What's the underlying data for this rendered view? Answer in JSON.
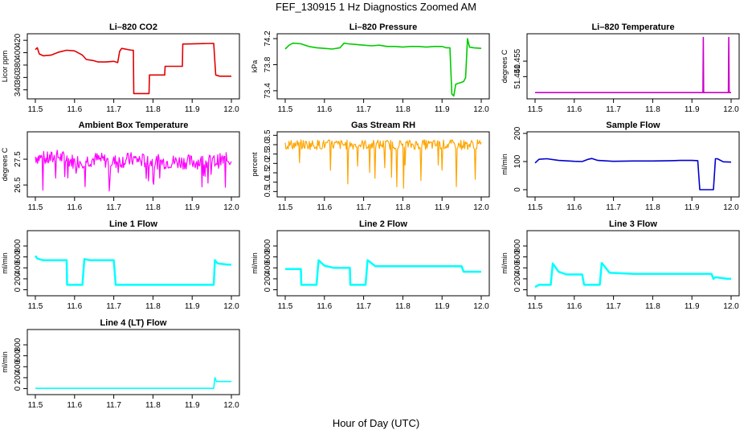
{
  "figure": {
    "title": "FEF_130915  1 Hz Diagnostics Zoomed AM",
    "xlabel": "Hour of Day (UTC)"
  },
  "chart_data": [
    {
      "type": "line",
      "title": "Li–820 CO2",
      "ylabel": "Licor ppm",
      "color": "#e00000",
      "xlim": [
        11.5,
        12.0
      ],
      "ylim": [
        328,
        428
      ],
      "xticks": [
        "11.5",
        "11.6",
        "11.7",
        "11.8",
        "11.9",
        "12.0"
      ],
      "yticks": [
        "340",
        "360",
        "380",
        "400",
        "420"
      ],
      "series": [
        {
          "x": [
            11.5,
            11.505,
            11.51,
            11.52,
            11.54,
            11.56,
            11.58,
            11.6,
            11.62,
            11.63,
            11.65,
            11.66,
            11.68,
            11.7,
            11.71,
            11.715,
            11.72,
            11.745,
            11.75,
            11.751,
            11.79,
            11.791,
            11.83,
            11.831,
            11.875,
            11.876,
            11.955,
            11.96,
            11.97,
            12.0
          ],
          "y": [
            405,
            408,
            398,
            395,
            396,
            401,
            404,
            403,
            396,
            389,
            387,
            385,
            385,
            386,
            384,
            402,
            407,
            404,
            404,
            334,
            334,
            364,
            364,
            378,
            378,
            414,
            415,
            364,
            362,
            362
          ]
        }
      ]
    },
    {
      "type": "line",
      "title": "Li–820 Pressure",
      "ylabel": "kPa",
      "color": "#00cc00",
      "xlim": [
        11.5,
        12.0
      ],
      "ylim": [
        73.3,
        74.25
      ],
      "xticks": [
        "11.5",
        "11.6",
        "11.7",
        "11.8",
        "11.9",
        "12.0"
      ],
      "yticks": [
        "73.4",
        "73.8",
        "74.2"
      ],
      "series": [
        {
          "x": [
            11.5,
            11.51,
            11.52,
            11.54,
            11.56,
            11.58,
            11.6,
            11.62,
            11.64,
            11.65,
            11.66,
            11.68,
            11.7,
            11.72,
            11.74,
            11.76,
            11.78,
            11.8,
            11.82,
            11.84,
            11.86,
            11.88,
            11.9,
            11.91,
            11.92,
            11.925,
            11.93,
            11.935,
            11.955,
            11.96,
            11.965,
            11.97,
            11.98,
            12.0
          ],
          "y": [
            74.04,
            74.1,
            74.13,
            74.12,
            74.08,
            74.06,
            74.05,
            74.04,
            74.06,
            74.13,
            74.12,
            74.11,
            74.1,
            74.09,
            74.1,
            74.08,
            74.08,
            74.07,
            74.08,
            74.08,
            74.07,
            74.08,
            74.08,
            74.06,
            74.06,
            73.35,
            73.32,
            73.5,
            73.54,
            73.6,
            74.2,
            74.07,
            74.06,
            74.05
          ]
        }
      ]
    },
    {
      "type": "line",
      "title": "Li–820 Temperature",
      "ylabel": "degrees C",
      "color": "#cc00cc",
      "xlim": [
        11.5,
        12.0
      ],
      "ylim": [
        51.42,
        51.48
      ],
      "xticks": [
        "11.5",
        "11.6",
        "11.7",
        "11.8",
        "11.9",
        "12.0"
      ],
      "yticks": [
        "51.440",
        "51.455"
      ],
      "series": [
        {
          "x": [
            11.5,
            11.928,
            11.929,
            11.93,
            11.993,
            11.994,
            11.995,
            12.0
          ],
          "y": [
            51.4245,
            51.4245,
            51.478,
            51.4245,
            51.4245,
            51.478,
            51.4245,
            51.4245
          ]
        }
      ]
    },
    {
      "type": "line",
      "title": "Ambient Box Temperature",
      "ylabel": "degrees C",
      "color": "#ff00ff",
      "xlim": [
        11.5,
        12.0
      ],
      "ylim": [
        26.1,
        28.5
      ],
      "xticks": [
        "11.5",
        "11.6",
        "11.7",
        "11.8",
        "11.9",
        "12.0"
      ],
      "yticks": [
        "26.5",
        "27.5"
      ],
      "series": [
        {
          "x": [
            11.5,
            11.53,
            11.56,
            11.6,
            11.65,
            11.7,
            11.75,
            11.8,
            11.85,
            11.9,
            11.95,
            12.0
          ],
          "y": [
            27.6,
            27.5,
            27.6,
            27.4,
            27.5,
            27.4,
            27.5,
            27.4,
            27.4,
            27.4,
            27.4,
            27.5
          ]
        }
      ]
    },
    {
      "type": "line",
      "title": "Gas Stream RH",
      "ylabel": "percent",
      "color": "#ffa500",
      "xlim": [
        11.5,
        12.0
      ],
      "ylim": [
        0.3,
        3.6
      ],
      "xticks": [
        "11.5",
        "11.6",
        "11.7",
        "11.8",
        "11.9",
        "12.0"
      ],
      "yticks": [
        "0.5",
        "1.0",
        "1.5",
        "2.0",
        "2.5",
        "3.0",
        "3.5"
      ],
      "series": [
        {
          "x": [
            11.5,
            11.55,
            11.6,
            11.65,
            11.7,
            11.75,
            11.8,
            11.85,
            11.9,
            11.95,
            12.0
          ],
          "y": [
            3.0,
            3.0,
            3.0,
            3.0,
            3.0,
            3.0,
            3.0,
            3.0,
            3.0,
            3.0,
            3.0
          ]
        }
      ]
    },
    {
      "type": "line",
      "title": "Sample Flow",
      "ylabel": "ml/min",
      "color": "#0000cc",
      "xlim": [
        11.5,
        12.0
      ],
      "ylim": [
        -20,
        200
      ],
      "xticks": [
        "11.5",
        "11.6",
        "11.7",
        "11.8",
        "11.9",
        "12.0"
      ],
      "yticks": [
        "0",
        "100",
        "200"
      ],
      "series": [
        {
          "x": [
            11.5,
            11.51,
            11.53,
            11.56,
            11.6,
            11.62,
            11.635,
            11.645,
            11.66,
            11.7,
            11.75,
            11.8,
            11.85,
            11.87,
            11.9,
            11.915,
            11.92,
            11.955,
            11.96,
            11.965,
            11.98,
            12.0
          ],
          "y": [
            95,
            108,
            110,
            104,
            101,
            100,
            108,
            111,
            104,
            101,
            102,
            102,
            103,
            104,
            104,
            103,
            0,
            0,
            110,
            110,
            99,
            98
          ]
        }
      ]
    },
    {
      "type": "line",
      "title": "Line 1 Flow",
      "ylabel": "ml/min",
      "color": "#00ffff",
      "xlim": [
        11.5,
        12.0
      ],
      "ylim": [
        -80,
        1050
      ],
      "xticks": [
        "11.5",
        "11.6",
        "11.7",
        "11.8",
        "11.9",
        "12.0"
      ],
      "yticks": [
        "0",
        "200",
        "400",
        "600",
        "800"
      ],
      "series": [
        {
          "x": [
            11.5,
            11.505,
            11.52,
            11.58,
            11.581,
            11.62,
            11.625,
            11.64,
            11.7,
            11.705,
            11.955,
            11.958,
            11.965,
            11.99,
            12.0
          ],
          "y": [
            620,
            570,
            540,
            540,
            90,
            90,
            560,
            540,
            540,
            90,
            90,
            540,
            480,
            460,
            460
          ]
        }
      ]
    },
    {
      "type": "line",
      "title": "Line 2 Flow",
      "ylabel": "ml/min",
      "color": "#00ffff",
      "xlim": [
        11.5,
        12.0
      ],
      "ylim": [
        -80,
        1050
      ],
      "xticks": [
        "11.5",
        "11.6",
        "11.7",
        "11.8",
        "11.9",
        "12.0"
      ],
      "yticks": [
        "0",
        "200",
        "400",
        "600",
        "800"
      ],
      "series": [
        {
          "x": [
            11.5,
            11.54,
            11.541,
            11.58,
            11.585,
            11.6,
            11.625,
            11.665,
            11.666,
            11.705,
            11.71,
            11.73,
            11.8,
            11.95,
            11.955,
            11.96,
            12.0
          ],
          "y": [
            380,
            380,
            90,
            90,
            540,
            440,
            400,
            400,
            90,
            90,
            540,
            430,
            430,
            430,
            330,
            330,
            330
          ]
        }
      ]
    },
    {
      "type": "line",
      "title": "Line 3 Flow",
      "ylabel": "ml/min",
      "color": "#00ffff",
      "xlim": [
        11.5,
        12.0
      ],
      "ylim": [
        -80,
        1050
      ],
      "xticks": [
        "11.5",
        "11.6",
        "11.7",
        "11.8",
        "11.9",
        "12.0"
      ],
      "yticks": [
        "0",
        "200",
        "400",
        "600",
        "800"
      ],
      "series": [
        {
          "x": [
            11.5,
            11.51,
            11.54,
            11.545,
            11.56,
            11.58,
            11.62,
            11.625,
            11.665,
            11.67,
            11.69,
            11.75,
            11.95,
            11.955,
            11.96,
            11.99,
            12.0
          ],
          "y": [
            50,
            90,
            90,
            480,
            330,
            280,
            280,
            90,
            90,
            490,
            310,
            290,
            290,
            200,
            230,
            200,
            200
          ]
        }
      ]
    },
    {
      "type": "line",
      "title": "Line 4 (LT) Flow",
      "ylabel": "ml/min",
      "color": "#00ffff",
      "xlim": [
        11.5,
        12.0
      ],
      "ylim": [
        -80,
        1050
      ],
      "xticks": [
        "11.5",
        "11.6",
        "11.7",
        "11.8",
        "11.9",
        "12.0"
      ],
      "yticks": [
        "0",
        "200",
        "400",
        "600",
        "800"
      ],
      "series": [
        {
          "x": [
            11.5,
            11.6,
            11.7,
            11.8,
            11.9,
            11.955,
            11.958,
            11.962,
            11.97,
            12.0
          ],
          "y": [
            5,
            5,
            5,
            5,
            5,
            5,
            200,
            130,
            130,
            130
          ]
        }
      ]
    }
  ]
}
